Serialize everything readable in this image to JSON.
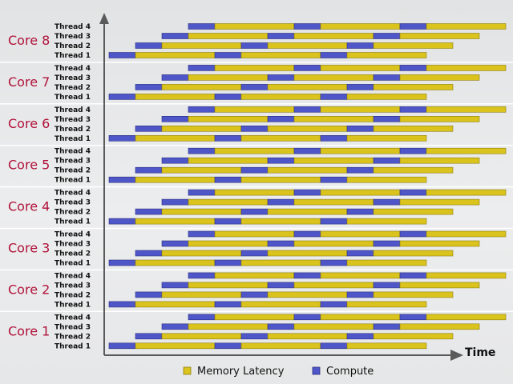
{
  "axis_label": "Time",
  "legend": [
    {
      "label": "Memory Latency",
      "color": "#d9c31c"
    },
    {
      "label": "Compute",
      "color": "#4f56c7"
    }
  ],
  "colors": {
    "memory": "#d9c31c",
    "memory_edge": "#8f7f12",
    "compute": "#4f56c7",
    "compute_edge": "#2a2f80",
    "core_label": "#b0123a",
    "divider": "#ffffff"
  },
  "cores": [
    {
      "label": "Core 8"
    },
    {
      "label": "Core 7"
    },
    {
      "label": "Core 6"
    },
    {
      "label": "Core 5"
    },
    {
      "label": "Core 4"
    },
    {
      "label": "Core 3"
    },
    {
      "label": "Core 2"
    },
    {
      "label": "Core 1"
    }
  ],
  "threads": [
    {
      "label": "Thread 4",
      "start": 3,
      "end": 15,
      "segments": [
        {
          "type": "compute",
          "len": 1
        },
        {
          "type": "memory",
          "len": 3
        },
        {
          "type": "compute",
          "len": 1
        },
        {
          "type": "memory",
          "len": 3
        },
        {
          "type": "compute",
          "len": 1
        },
        {
          "type": "memory",
          "len": 3
        }
      ]
    },
    {
      "label": "Thread 3",
      "start": 2,
      "end": 14,
      "segments": [
        {
          "type": "compute",
          "len": 1
        },
        {
          "type": "memory",
          "len": 3
        },
        {
          "type": "compute",
          "len": 1
        },
        {
          "type": "memory",
          "len": 3
        },
        {
          "type": "compute",
          "len": 1
        },
        {
          "type": "memory",
          "len": 3
        }
      ]
    },
    {
      "label": "Thread 2",
      "start": 1,
      "end": 13,
      "segments": [
        {
          "type": "compute",
          "len": 1
        },
        {
          "type": "memory",
          "len": 3
        },
        {
          "type": "compute",
          "len": 1
        },
        {
          "type": "memory",
          "len": 3
        },
        {
          "type": "compute",
          "len": 1
        },
        {
          "type": "memory",
          "len": 3
        }
      ]
    },
    {
      "label": "Thread 1",
      "start": 0,
      "end": 12,
      "segments": [
        {
          "type": "compute",
          "len": 1
        },
        {
          "type": "memory",
          "len": 3
        },
        {
          "type": "compute",
          "len": 1
        },
        {
          "type": "memory",
          "len": 3
        },
        {
          "type": "compute",
          "len": 1
        },
        {
          "type": "memory",
          "len": 3
        }
      ]
    }
  ]
}
